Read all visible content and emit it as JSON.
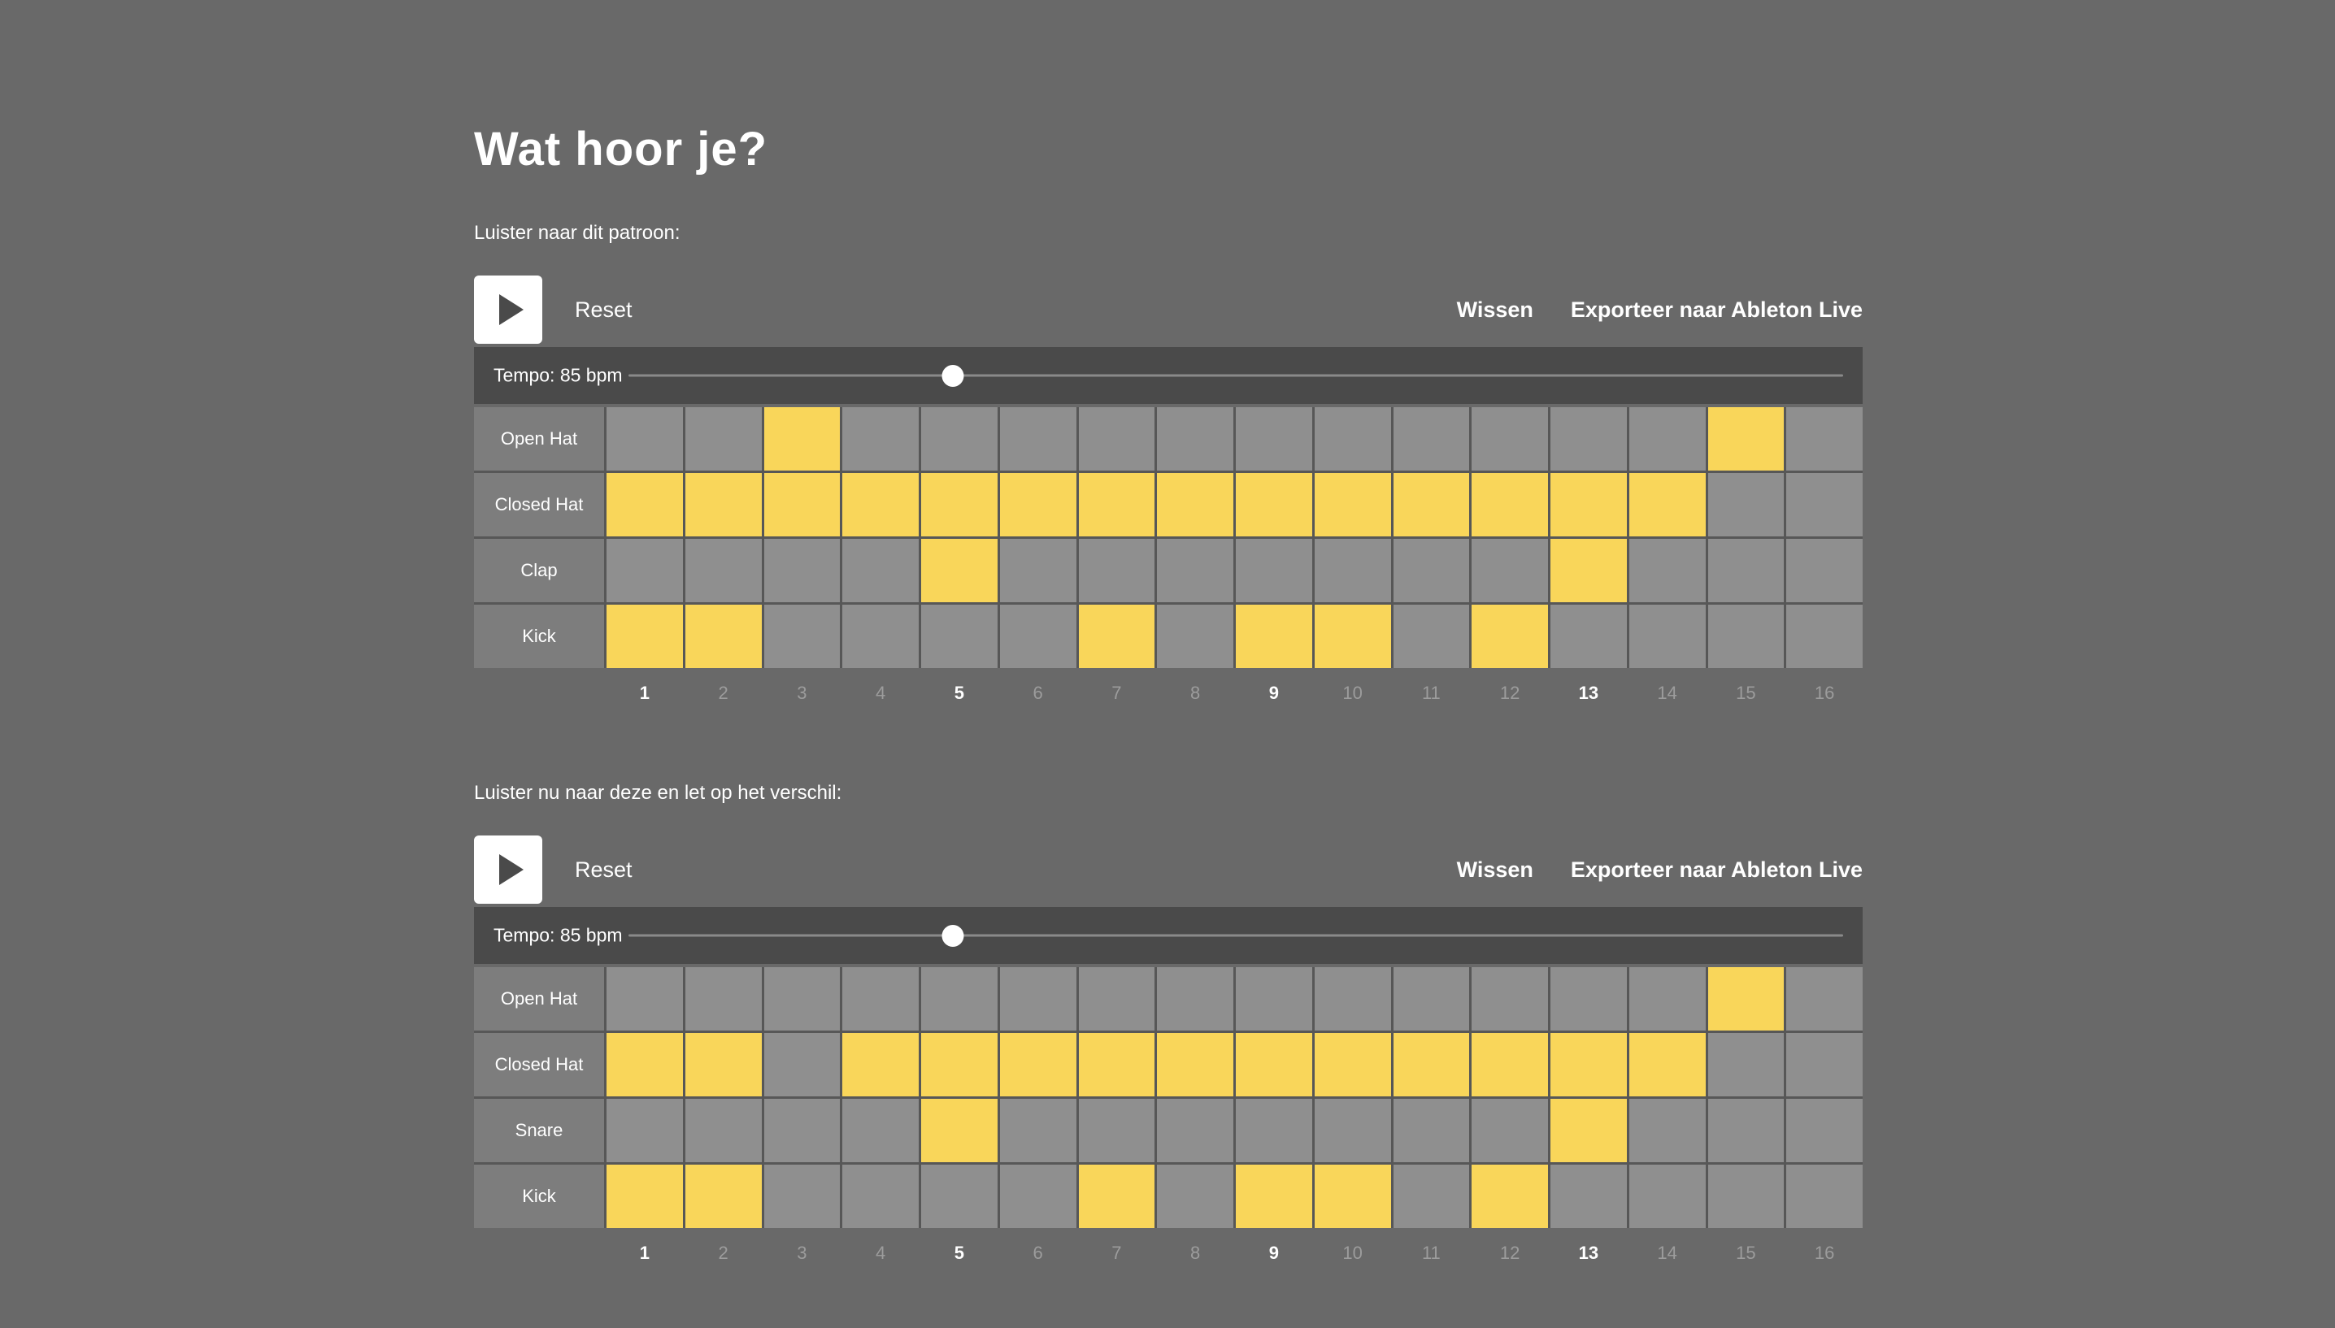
{
  "title": "Wat hoor je?",
  "colors": {
    "bg": "#696969",
    "bar": "#4a4a4a",
    "cell": "#8f8f8f",
    "label_cell": "#7d7d7d",
    "active": "#f9d65a"
  },
  "steps": 16,
  "step_numbers": [
    1,
    2,
    3,
    4,
    5,
    6,
    7,
    8,
    9,
    10,
    11,
    12,
    13,
    14,
    15,
    16
  ],
  "accent_beats": [
    1,
    5,
    9,
    13
  ],
  "sequencers": [
    {
      "instruction": "Luister naar dit patroon:",
      "reset_label": "Reset",
      "clear_label": "Wissen",
      "export_label": "Exporteer naar Ableton Live",
      "tempo_label": "Tempo: 85 bpm",
      "tempo_bpm": 85,
      "rows": [
        {
          "name": "Open Hat",
          "active": [
            3,
            15
          ]
        },
        {
          "name": "Closed Hat",
          "active": [
            1,
            2,
            3,
            4,
            5,
            6,
            7,
            8,
            9,
            10,
            11,
            12,
            13,
            14
          ]
        },
        {
          "name": "Clap",
          "active": [
            5,
            13
          ]
        },
        {
          "name": "Kick",
          "active": [
            1,
            2,
            7,
            9,
            10,
            12
          ]
        }
      ]
    },
    {
      "instruction": "Luister nu naar deze en let op het verschil:",
      "reset_label": "Reset",
      "clear_label": "Wissen",
      "export_label": "Exporteer naar Ableton Live",
      "tempo_label": "Tempo: 85 bpm",
      "tempo_bpm": 85,
      "rows": [
        {
          "name": "Open Hat",
          "active": [
            15
          ]
        },
        {
          "name": "Closed Hat",
          "active": [
            1,
            2,
            4,
            5,
            6,
            7,
            8,
            9,
            10,
            11,
            12,
            13,
            14
          ]
        },
        {
          "name": "Snare",
          "active": [
            5,
            13
          ]
        },
        {
          "name": "Kick",
          "active": [
            1,
            2,
            7,
            9,
            10,
            12
          ]
        }
      ]
    }
  ]
}
